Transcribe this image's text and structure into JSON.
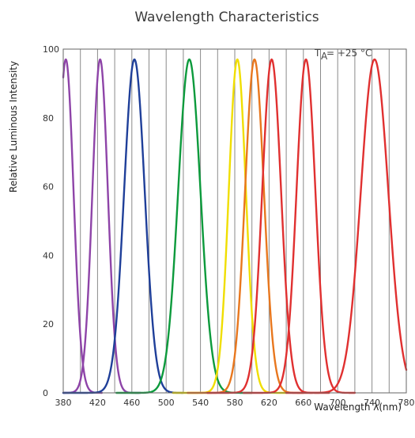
{
  "chart_data": {
    "type": "line",
    "title": "Wavelength Characteristics",
    "xlabel": "Wavelength λ(nm)",
    "ylabel": "Relative Luminous Intensity",
    "annotation": {
      "symbol": "T",
      "subscript": "A",
      "text": "= +25 °C"
    },
    "xlim": [
      380,
      780
    ],
    "ylim": [
      0,
      100
    ],
    "x_ticks": [
      380,
      420,
      460,
      500,
      540,
      580,
      620,
      660,
      700,
      740,
      780
    ],
    "x_tick_labels": [
      "380",
      "420",
      "460",
      "500",
      "540",
      "580",
      "620",
      "660",
      "700",
      "740",
      "780"
    ],
    "x_minor_gridlines": [
      400,
      440,
      480,
      520,
      560,
      600,
      640,
      680,
      720,
      760
    ],
    "y_ticks": [
      0,
      20,
      40,
      60,
      80,
      100
    ],
    "y_tick_labels": [
      "0",
      "20",
      "40",
      "60",
      "80",
      "100"
    ],
    "grid": "vertical",
    "series": [
      {
        "peak": 383,
        "halfwidth": 9,
        "amplitude": 97,
        "range": [
          380,
          425
        ],
        "color": "#8e44a8"
      },
      {
        "peak": 423,
        "halfwidth": 9,
        "amplitude": 97,
        "range": [
          380,
          470
        ],
        "color": "#8e44a8"
      },
      {
        "peak": 463,
        "halfwidth": 12,
        "amplitude": 97,
        "range": [
          380,
          520
        ],
        "color": "#1f3f99"
      },
      {
        "peak": 527,
        "halfwidth": 13,
        "amplitude": 97,
        "range": [
          442,
          600
        ],
        "color": "#0c9a3c"
      },
      {
        "peak": 583,
        "halfwidth": 10,
        "amplitude": 97,
        "range": [
          508,
          640
        ],
        "color": "#f0de00"
      },
      {
        "peak": 603,
        "halfwidth": 11,
        "amplitude": 97,
        "range": [
          525,
          660
        ],
        "color": "#e8771e"
      },
      {
        "peak": 623,
        "halfwidth": 11,
        "amplitude": 97,
        "range": [
          548,
          690
        ],
        "color": "#e03030"
      },
      {
        "peak": 663,
        "halfwidth": 11,
        "amplitude": 97,
        "range": [
          590,
          720
        ],
        "color": "#e03030"
      },
      {
        "peak": 743,
        "halfwidth": 16,
        "amplitude": 97,
        "range": [
          640,
          780
        ],
        "color": "#e03030"
      }
    ]
  }
}
